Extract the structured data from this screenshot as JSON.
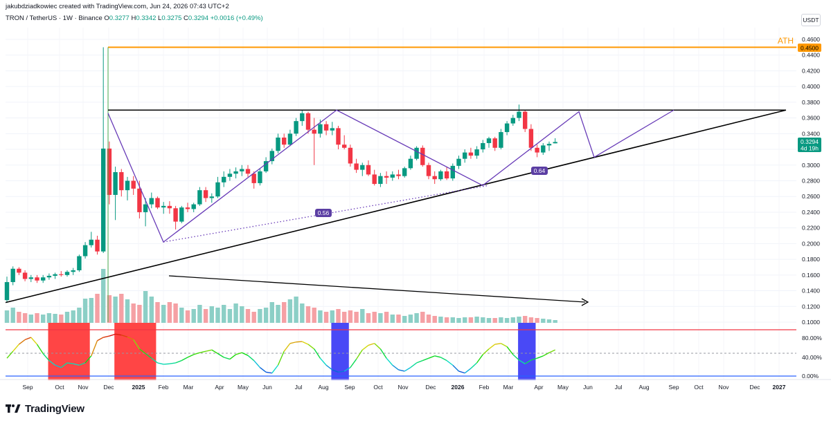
{
  "header": {
    "credit": "jakubdziadkowiec created with TradingView.com, Jun 24, 2026 07:43 UTC+2",
    "symbol": "TRON / TetherUS · 1W · Binance",
    "o_label": "O",
    "o_value": "0.3277",
    "h_label": "H",
    "h_value": "0.3342",
    "l_label": "L",
    "l_value": "0.3275",
    "c_label": "C",
    "c_value": "0.3294",
    "change": "+0.0016 (+0.49%)"
  },
  "currency_button": "USDT",
  "annotations": {
    "ath_text": "ATH",
    "ath_price": "0.4500",
    "last_price": "0.3294",
    "countdown": "4d 19h",
    "badge_a": "0.56",
    "badge_b": "0.64"
  },
  "footer": {
    "brand": "TradingView",
    "logo_icon": "tradingview-logo-icon"
  },
  "colors": {
    "up": "#089981",
    "down": "#f23645",
    "vol_up": "#8ccfc6",
    "vol_down": "#f5a0a4",
    "ath_line": "#ff9800",
    "pattern": "#673ab7",
    "trendline": "#000000",
    "label_bg": "#f23645",
    "last_bg": "#089981",
    "badge_bg": "#5b3ea3",
    "osc_zone_red": "#ff3b3b",
    "osc_zone_blue": "#3f3ff5"
  },
  "chart_data": {
    "type": "candlestick",
    "title": "TRON / TetherUS · 1W · Binance",
    "y_axis_ticks": [
      "0.4600",
      "0.4400",
      "0.4200",
      "0.4000",
      "0.3800",
      "0.3600",
      "0.3400",
      "0.3200",
      "0.3000",
      "0.2800",
      "0.2600",
      "0.2400",
      "0.2200",
      "0.2000",
      "0.1800",
      "0.1600",
      "0.1400",
      "0.1200",
      "0.1000"
    ],
    "ylim": [
      0.1,
      0.46
    ],
    "x_axis_ticks": [
      "Sep",
      "Oct",
      "Nov",
      "Dec",
      "2025",
      "Feb",
      "Mar",
      "Apr",
      "May",
      "Jun",
      "Jul",
      "Aug",
      "Sep",
      "Oct",
      "Nov",
      "Dec",
      "2026",
      "Feb",
      "Mar",
      "Apr",
      "May",
      "Jun",
      "Jul",
      "Aug",
      "Sep",
      "Oct",
      "Nov",
      "Dec",
      "2027"
    ],
    "oscillator_ticks": [
      "80.00%",
      "40.00%",
      "0.00%"
    ],
    "ath_level": 0.45,
    "last_close": 0.3294,
    "candles_ohlc": [
      [
        0.128,
        0.158,
        0.125,
        0.151
      ],
      [
        0.151,
        0.171,
        0.147,
        0.168
      ],
      [
        0.168,
        0.17,
        0.16,
        0.163
      ],
      [
        0.163,
        0.166,
        0.152,
        0.155
      ],
      [
        0.155,
        0.16,
        0.151,
        0.157
      ],
      [
        0.157,
        0.16,
        0.15,
        0.153
      ],
      [
        0.153,
        0.16,
        0.15,
        0.157
      ],
      [
        0.157,
        0.162,
        0.154,
        0.159
      ],
      [
        0.159,
        0.163,
        0.155,
        0.161
      ],
      [
        0.161,
        0.165,
        0.158,
        0.16
      ],
      [
        0.16,
        0.166,
        0.158,
        0.164
      ],
      [
        0.164,
        0.169,
        0.16,
        0.166
      ],
      [
        0.166,
        0.186,
        0.164,
        0.184
      ],
      [
        0.184,
        0.202,
        0.181,
        0.198
      ],
      [
        0.198,
        0.215,
        0.195,
        0.205
      ],
      [
        0.205,
        0.21,
        0.186,
        0.19
      ],
      [
        0.19,
        0.45,
        0.188,
        0.321
      ],
      [
        0.321,
        0.33,
        0.25,
        0.262
      ],
      [
        0.262,
        0.298,
        0.23,
        0.291
      ],
      [
        0.291,
        0.295,
        0.26,
        0.268
      ],
      [
        0.268,
        0.285,
        0.255,
        0.28
      ],
      [
        0.28,
        0.286,
        0.262,
        0.27
      ],
      [
        0.27,
        0.28,
        0.232,
        0.24
      ],
      [
        0.24,
        0.258,
        0.222,
        0.25
      ],
      [
        0.25,
        0.265,
        0.245,
        0.258
      ],
      [
        0.258,
        0.26,
        0.244,
        0.246
      ],
      [
        0.246,
        0.253,
        0.238,
        0.248
      ],
      [
        0.248,
        0.254,
        0.238,
        0.245
      ],
      [
        0.245,
        0.248,
        0.218,
        0.228
      ],
      [
        0.228,
        0.248,
        0.226,
        0.246
      ],
      [
        0.246,
        0.252,
        0.24,
        0.244
      ],
      [
        0.244,
        0.252,
        0.24,
        0.25
      ],
      [
        0.25,
        0.272,
        0.248,
        0.268
      ],
      [
        0.268,
        0.272,
        0.253,
        0.258
      ],
      [
        0.258,
        0.264,
        0.252,
        0.26
      ],
      [
        0.26,
        0.285,
        0.258,
        0.278
      ],
      [
        0.278,
        0.292,
        0.272,
        0.285
      ],
      [
        0.285,
        0.295,
        0.28,
        0.289
      ],
      [
        0.289,
        0.297,
        0.283,
        0.292
      ],
      [
        0.292,
        0.3,
        0.286,
        0.295
      ],
      [
        0.295,
        0.3,
        0.285,
        0.289
      ],
      [
        0.289,
        0.292,
        0.27,
        0.277
      ],
      [
        0.277,
        0.295,
        0.274,
        0.292
      ],
      [
        0.292,
        0.31,
        0.29,
        0.305
      ],
      [
        0.305,
        0.321,
        0.301,
        0.318
      ],
      [
        0.318,
        0.34,
        0.315,
        0.335
      ],
      [
        0.335,
        0.34,
        0.322,
        0.326
      ],
      [
        0.326,
        0.345,
        0.324,
        0.34
      ],
      [
        0.34,
        0.36,
        0.337,
        0.356
      ],
      [
        0.356,
        0.37,
        0.35,
        0.366
      ],
      [
        0.366,
        0.368,
        0.34,
        0.345
      ],
      [
        0.345,
        0.36,
        0.3,
        0.34
      ],
      [
        0.34,
        0.358,
        0.335,
        0.352
      ],
      [
        0.352,
        0.356,
        0.338,
        0.344
      ],
      [
        0.344,
        0.355,
        0.338,
        0.347
      ],
      [
        0.347,
        0.35,
        0.32,
        0.326
      ],
      [
        0.326,
        0.338,
        0.32,
        0.322
      ],
      [
        0.322,
        0.326,
        0.298,
        0.302
      ],
      [
        0.302,
        0.308,
        0.29,
        0.294
      ],
      [
        0.294,
        0.303,
        0.286,
        0.3
      ],
      [
        0.3,
        0.306,
        0.286,
        0.288
      ],
      [
        0.288,
        0.294,
        0.274,
        0.276
      ],
      [
        0.276,
        0.29,
        0.272,
        0.286
      ],
      [
        0.286,
        0.292,
        0.276,
        0.284
      ],
      [
        0.284,
        0.292,
        0.28,
        0.288
      ],
      [
        0.288,
        0.294,
        0.282,
        0.286
      ],
      [
        0.286,
        0.298,
        0.284,
        0.296
      ],
      [
        0.296,
        0.312,
        0.294,
        0.308
      ],
      [
        0.308,
        0.324,
        0.306,
        0.322
      ],
      [
        0.322,
        0.325,
        0.298,
        0.3
      ],
      [
        0.3,
        0.303,
        0.282,
        0.286
      ],
      [
        0.286,
        0.292,
        0.276,
        0.282
      ],
      [
        0.282,
        0.294,
        0.28,
        0.292
      ],
      [
        0.292,
        0.298,
        0.281,
        0.283
      ],
      [
        0.283,
        0.302,
        0.28,
        0.299
      ],
      [
        0.299,
        0.312,
        0.295,
        0.308
      ],
      [
        0.308,
        0.32,
        0.303,
        0.316
      ],
      [
        0.316,
        0.322,
        0.308,
        0.312
      ],
      [
        0.312,
        0.324,
        0.308,
        0.32
      ],
      [
        0.32,
        0.332,
        0.316,
        0.328
      ],
      [
        0.328,
        0.336,
        0.322,
        0.334
      ],
      [
        0.334,
        0.336,
        0.318,
        0.322
      ],
      [
        0.322,
        0.346,
        0.32,
        0.342
      ],
      [
        0.342,
        0.356,
        0.338,
        0.353
      ],
      [
        0.353,
        0.364,
        0.35,
        0.36
      ],
      [
        0.36,
        0.377,
        0.356,
        0.368
      ],
      [
        0.368,
        0.37,
        0.342,
        0.346
      ],
      [
        0.346,
        0.352,
        0.318,
        0.322
      ],
      [
        0.322,
        0.326,
        0.31,
        0.316
      ],
      [
        0.316,
        0.328,
        0.313,
        0.325
      ],
      [
        0.325,
        0.33,
        0.318,
        0.327
      ],
      [
        0.3277,
        0.3342,
        0.3275,
        0.3294
      ]
    ],
    "volume_relative": [
      18,
      22,
      16,
      14,
      12,
      14,
      12,
      14,
      13,
      12,
      16,
      18,
      22,
      35,
      36,
      42,
      78,
      40,
      38,
      42,
      34,
      28,
      26,
      46,
      38,
      30,
      26,
      30,
      28,
      22,
      18,
      20,
      26,
      20,
      24,
      22,
      26,
      20,
      28,
      24,
      20,
      16,
      20,
      22,
      30,
      26,
      30,
      34,
      38,
      28,
      24,
      22,
      18,
      16,
      18,
      20,
      16,
      18,
      16,
      20,
      14,
      16,
      14,
      16,
      12,
      12,
      10,
      12,
      14,
      16,
      12,
      10,
      9,
      8,
      8,
      7,
      8,
      8,
      9,
      8,
      7,
      7,
      8,
      7,
      8,
      9,
      10,
      8,
      7,
      6,
      5,
      4
    ],
    "oscillator_percent": [
      40,
      55,
      70,
      80,
      85,
      70,
      50,
      35,
      25,
      20,
      30,
      28,
      25,
      30,
      45,
      78,
      85,
      88,
      92,
      90,
      86,
      80,
      60,
      50,
      40,
      30,
      27,
      28,
      30,
      35,
      42,
      48,
      52,
      55,
      58,
      50,
      42,
      38,
      48,
      52,
      46,
      35,
      20,
      10,
      8,
      25,
      55,
      72,
      75,
      76,
      70,
      60,
      40,
      25,
      15,
      10,
      12,
      20,
      38,
      58,
      68,
      72,
      60,
      40,
      25,
      15,
      12,
      20,
      30,
      35,
      40,
      45,
      42,
      35,
      25,
      12,
      8,
      18,
      30,
      48,
      60,
      70,
      72,
      65,
      48,
      36,
      28,
      36,
      40,
      45,
      52,
      58
    ],
    "oscillator_reference_levels": [
      85,
      50,
      3
    ],
    "shaded_zones": [
      {
        "color": "red",
        "from_week": 5,
        "to_week": 11
      },
      {
        "color": "red",
        "from_week": 16,
        "to_week": 22
      },
      {
        "color": "blue",
        "from_week": 52,
        "to_week": 54
      },
      {
        "color": "blue",
        "from_week": 83,
        "to_week": 85
      }
    ],
    "drawings": {
      "resistance_level": 0.37,
      "rising_support_from": [
        0,
        0.125
      ],
      "rising_support_to": [
        137,
        0.37
      ],
      "zigzag_points": [
        [
          21,
          0.366
        ],
        [
          30,
          0.202
        ],
        [
          67,
          0.37
        ],
        [
          95,
          0.274
        ],
        [
          116,
          0.368
        ],
        [
          119,
          0.31
        ]
      ],
      "converging_line_from": [
        119,
        0.31
      ],
      "converging_line_to": [
        130,
        0.37
      ]
    },
    "grid": true,
    "legend": "none"
  }
}
